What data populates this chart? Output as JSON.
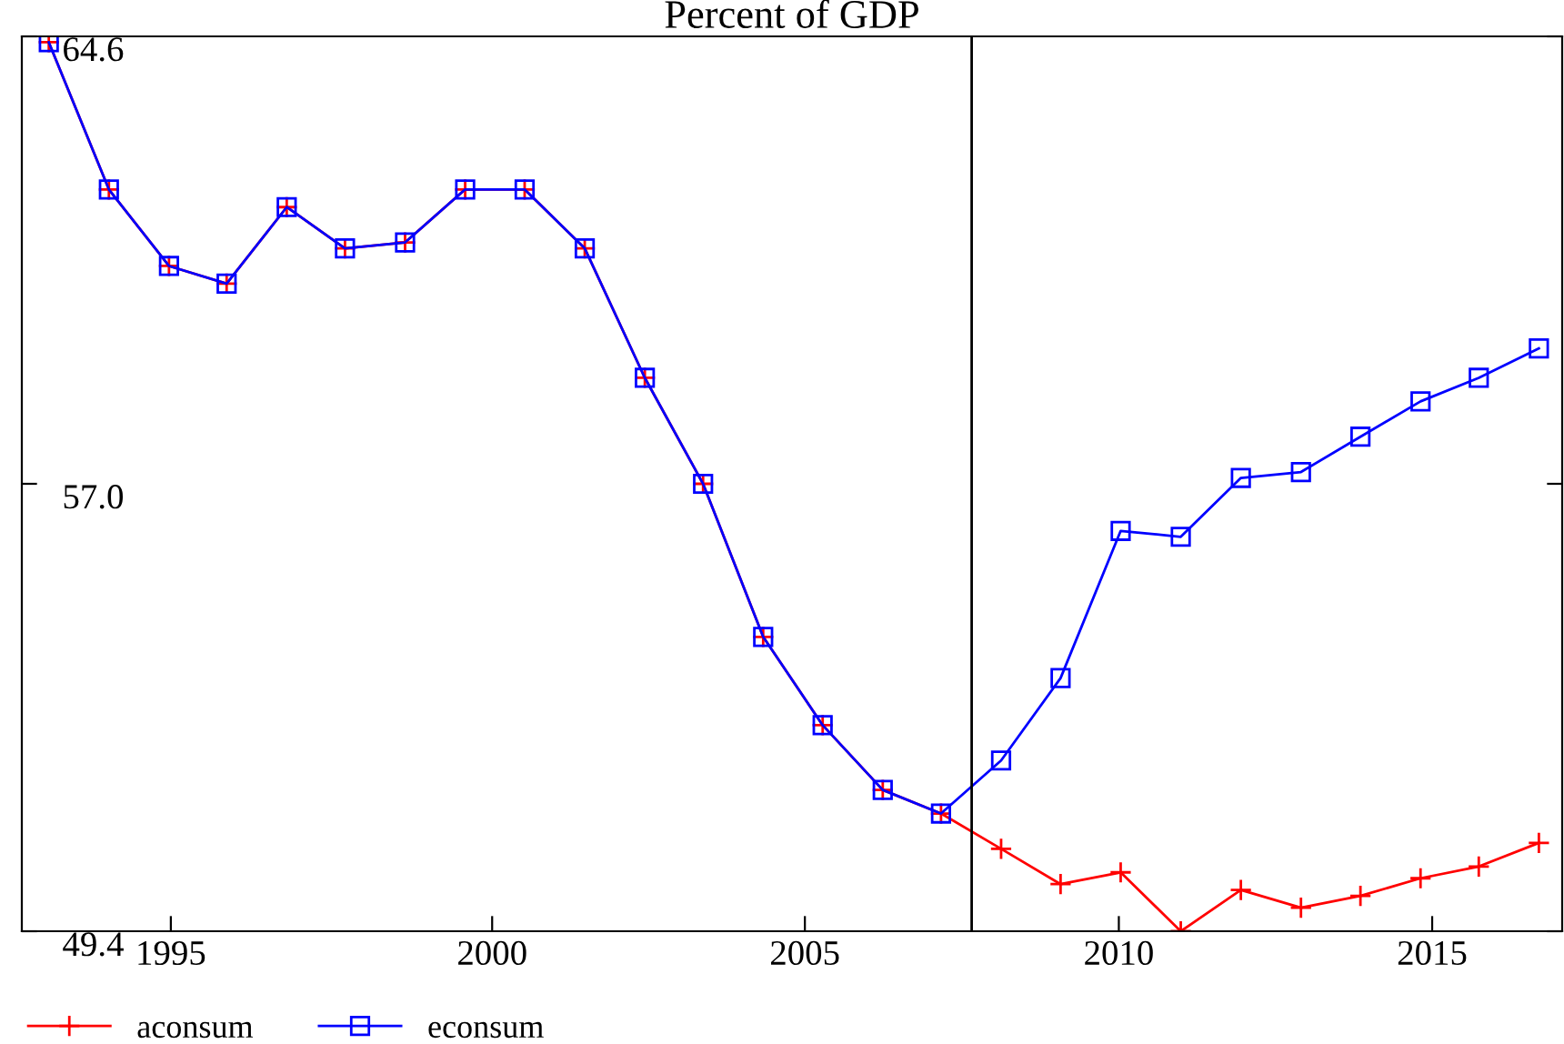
{
  "chart_data": {
    "type": "line",
    "title": "Percent of GDP",
    "x": [
      1992.54,
      1993.52,
      1994.5,
      1995.44,
      1996.42,
      1997.37,
      1998.35,
      1999.33,
      2000.3,
      2001.28,
      2002.26,
      2003.21,
      2004.19,
      2005.16,
      2006.14,
      2007.09,
      2008.07,
      2009.04,
      2010.02,
      2011.0,
      2011.98,
      2012.96,
      2013.93,
      2014.91,
      2015.86,
      2016.84
    ],
    "series": [
      {
        "name": "aconsum",
        "color": "#ff0000",
        "marker": "cross",
        "values": [
          64.5,
          62.0,
          60.7,
          60.4,
          61.7,
          61.0,
          61.1,
          62.0,
          62.0,
          61.0,
          58.8,
          57.0,
          54.4,
          52.9,
          51.8,
          51.4,
          50.8,
          50.2,
          50.4,
          49.4,
          50.1,
          49.8,
          50.0,
          50.3,
          50.5,
          50.9
        ]
      },
      {
        "name": "econsum",
        "color": "#0000ff",
        "marker": "square",
        "values": [
          64.5,
          62.0,
          60.7,
          60.4,
          61.7,
          61.0,
          61.1,
          62.0,
          62.0,
          61.0,
          58.8,
          57.0,
          54.4,
          52.9,
          51.8,
          51.4,
          52.3,
          53.7,
          56.2,
          56.1,
          57.1,
          57.2,
          57.8,
          58.4,
          58.8,
          59.3
        ]
      }
    ],
    "xlim": [
      1992.1,
      2017.22
    ],
    "ylim": [
      49.4,
      64.6
    ],
    "xticks": [
      {
        "value": 1994.53,
        "label": "1995"
      },
      {
        "value": 1999.77,
        "label": "2000"
      },
      {
        "value": 2004.87,
        "label": "2005"
      },
      {
        "value": 2009.99,
        "label": "2010"
      },
      {
        "value": 2015.1,
        "label": "2015"
      }
    ],
    "yticks": [
      49.4,
      {
        "value": 57,
        "label": "57.0"
      },
      64.6
    ],
    "ref_lines": [
      {
        "axis": "x",
        "value": 2007.59,
        "color": "#000000"
      }
    ],
    "grid": false,
    "legend": "bottom left",
    "line_style": "solid"
  }
}
